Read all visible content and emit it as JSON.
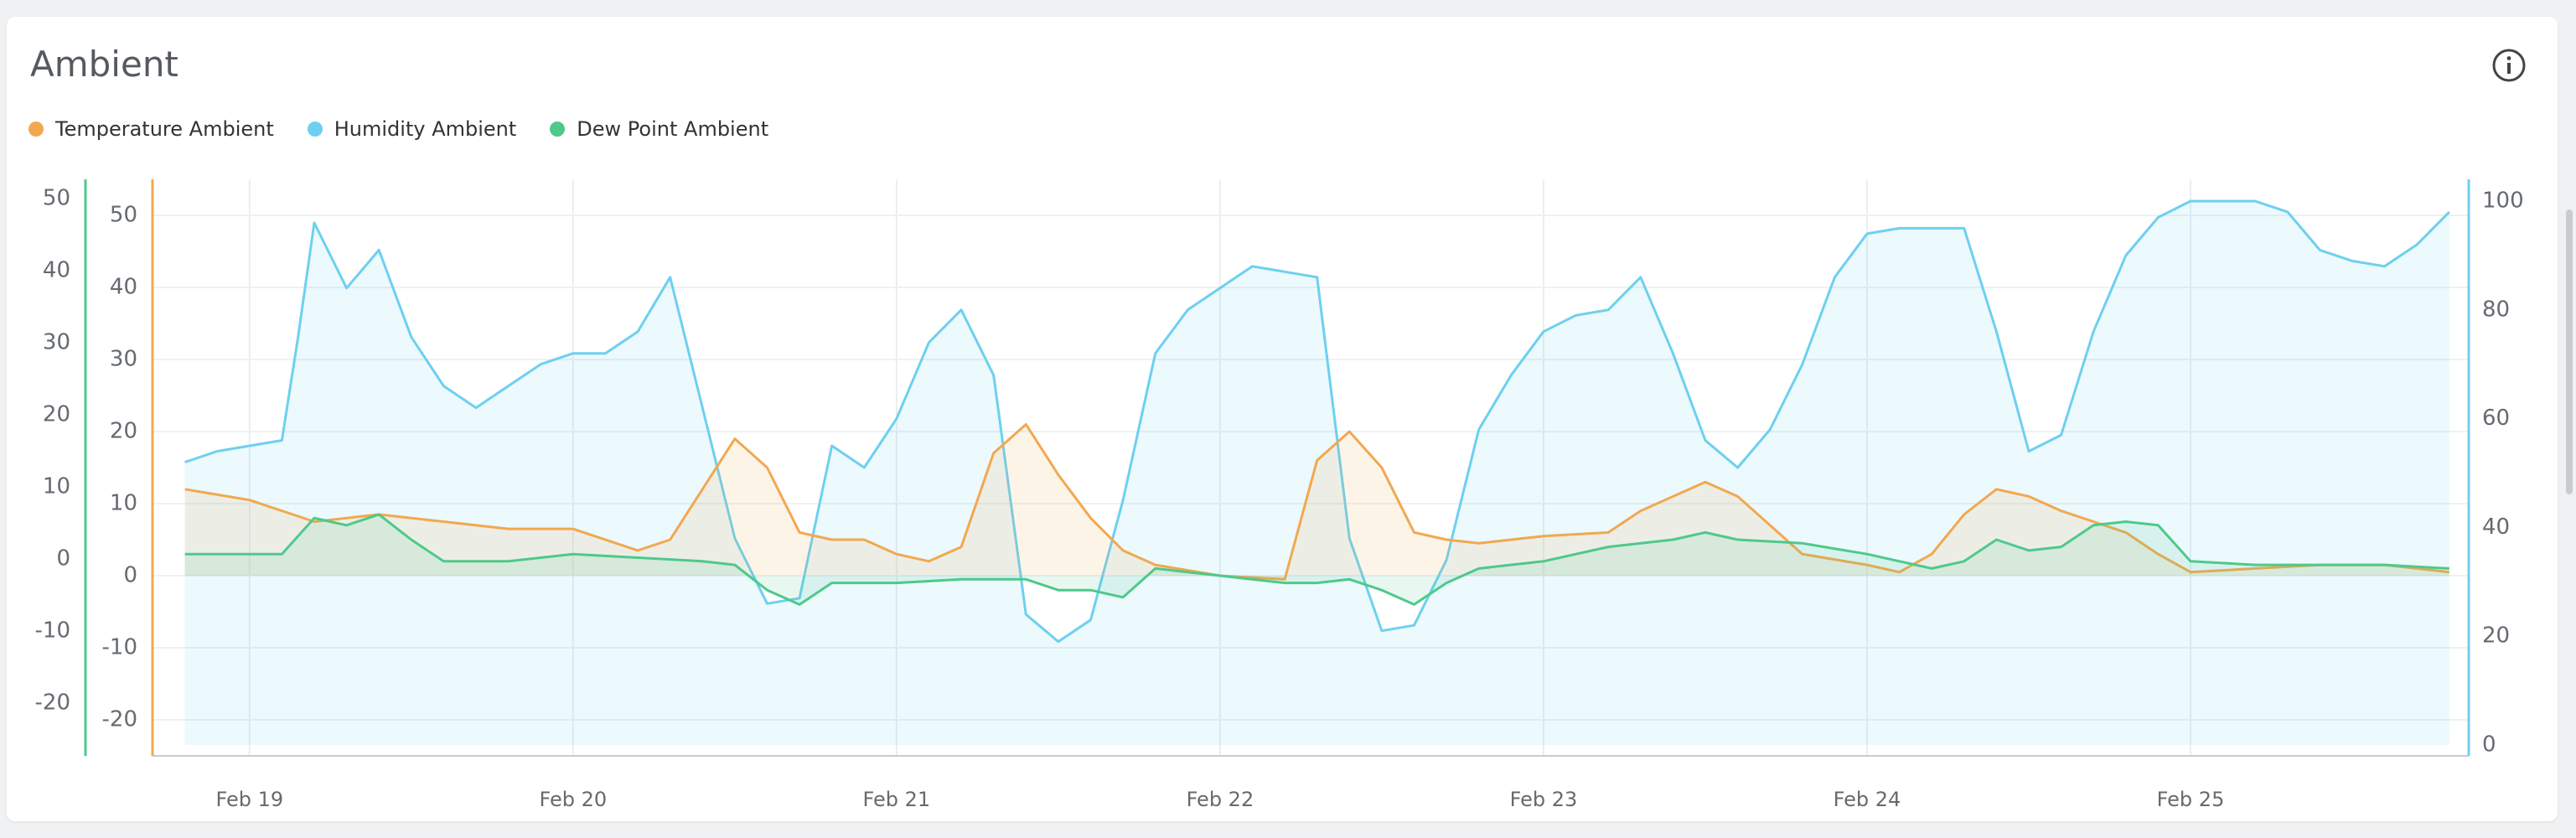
{
  "card": {
    "title": "Ambient"
  },
  "icons": {
    "info": "info-circle-icon"
  },
  "legend": [
    {
      "label": "Temperature Ambient",
      "color": "#f2a84f"
    },
    {
      "label": "Humidity Ambient",
      "color": "#6dd0f0"
    },
    {
      "label": "Dew Point Ambient",
      "color": "#4ec98a"
    }
  ],
  "chart_data": {
    "type": "area",
    "grid": true,
    "legend_position": "top-left",
    "x_ticks": [
      "Feb 19",
      "Feb 20",
      "Feb 21",
      "Feb 22",
      "Feb 23",
      "Feb 24",
      "Feb 25"
    ],
    "x_range": [
      18.7,
      25.86
    ],
    "y_left_outer": {
      "ticks": [
        "50",
        "40",
        "30",
        "20",
        "10",
        "0",
        "-10",
        "-20"
      ],
      "range": [
        -25,
        55
      ],
      "color": "#4ec98a"
    },
    "y_left_inner": {
      "ticks": [
        "50",
        "40",
        "30",
        "20",
        "10",
        "0",
        "-10",
        "-20"
      ],
      "range": [
        -25,
        55
      ],
      "color": "#f2a84f"
    },
    "y_right": {
      "ticks": [
        "100",
        "80",
        "60",
        "40",
        "20",
        "0"
      ],
      "range": [
        -2,
        104
      ],
      "color": "#6dd0f0"
    },
    "series": [
      {
        "name": "Temperature Ambient",
        "color": "#f2a84f",
        "axis": "left",
        "x": [
          18.8,
          19.0,
          19.2,
          19.4,
          19.6,
          19.8,
          20.0,
          20.2,
          20.3,
          20.5,
          20.6,
          20.7,
          20.8,
          20.9,
          21.0,
          21.1,
          21.2,
          21.3,
          21.4,
          21.5,
          21.6,
          21.7,
          21.8,
          22.0,
          22.2,
          22.3,
          22.4,
          22.5,
          22.6,
          22.7,
          22.8,
          23.0,
          23.2,
          23.3,
          23.5,
          23.6,
          23.7,
          23.8,
          24.0,
          24.1,
          24.2,
          24.3,
          24.4,
          24.5,
          24.6,
          24.7,
          24.8,
          24.9,
          25.0,
          25.2,
          25.4,
          25.6,
          25.8
        ],
        "values": [
          12,
          10.5,
          7.5,
          8.5,
          7.5,
          6.5,
          6.5,
          3.5,
          5,
          19,
          15,
          6,
          5,
          5,
          3,
          2,
          4,
          17,
          21,
          14,
          8,
          3.5,
          1.5,
          0,
          -0.5,
          16,
          20,
          15,
          6,
          5,
          4.5,
          5.5,
          6,
          9,
          13,
          11,
          7,
          3,
          1.5,
          0.5,
          3,
          8.5,
          12,
          11,
          9,
          7.5,
          6,
          3,
          0.5,
          1,
          1.5,
          1.5,
          0.5
        ]
      },
      {
        "name": "Humidity Ambient",
        "color": "#6dd0f0",
        "axis": "right",
        "x": [
          18.8,
          18.9,
          19.0,
          19.1,
          19.15,
          19.2,
          19.3,
          19.4,
          19.5,
          19.6,
          19.7,
          19.8,
          19.9,
          20.0,
          20.1,
          20.2,
          20.3,
          20.4,
          20.5,
          20.6,
          20.7,
          20.8,
          20.9,
          21.0,
          21.1,
          21.2,
          21.3,
          21.4,
          21.5,
          21.6,
          21.7,
          21.8,
          21.9,
          22.0,
          22.1,
          22.2,
          22.3,
          22.4,
          22.5,
          22.6,
          22.7,
          22.8,
          22.9,
          23.0,
          23.1,
          23.2,
          23.3,
          23.4,
          23.5,
          23.6,
          23.7,
          23.8,
          23.9,
          24.0,
          24.1,
          24.2,
          24.3,
          24.4,
          24.5,
          24.6,
          24.7,
          24.8,
          24.9,
          25.0,
          25.1,
          25.2,
          25.3,
          25.4,
          25.5,
          25.6,
          25.7,
          25.8
        ],
        "values": [
          52,
          54,
          55,
          56,
          75,
          96,
          84,
          91,
          75,
          66,
          62,
          66,
          70,
          72,
          72,
          76,
          86,
          62,
          38,
          26,
          27,
          55,
          51,
          60,
          74,
          80,
          68,
          24,
          19,
          23,
          45,
          72,
          80,
          84,
          88,
          87,
          86,
          38,
          21,
          22,
          34,
          58,
          68,
          76,
          79,
          80,
          86,
          72,
          56,
          51,
          58,
          70,
          86,
          94,
          95,
          95,
          95,
          76,
          54,
          57,
          76,
          90,
          97,
          100,
          100,
          100,
          98,
          91,
          89,
          88,
          92,
          98
        ]
      },
      {
        "name": "Dew Point Ambient",
        "color": "#4ec98a",
        "axis": "left",
        "x": [
          18.8,
          19.0,
          19.1,
          19.2,
          19.3,
          19.4,
          19.5,
          19.6,
          19.8,
          20.0,
          20.2,
          20.4,
          20.5,
          20.6,
          20.7,
          20.8,
          20.9,
          21.0,
          21.2,
          21.4,
          21.5,
          21.6,
          21.7,
          21.8,
          22.0,
          22.2,
          22.3,
          22.4,
          22.5,
          22.6,
          22.7,
          22.8,
          23.0,
          23.2,
          23.4,
          23.5,
          23.6,
          23.8,
          24.0,
          24.1,
          24.2,
          24.3,
          24.4,
          24.5,
          24.6,
          24.7,
          24.8,
          24.9,
          25.0,
          25.2,
          25.4,
          25.6,
          25.8
        ],
        "values": [
          3,
          3,
          3,
          8,
          7,
          8.5,
          5,
          2,
          2,
          3,
          2.5,
          2,
          1.5,
          -2,
          -4,
          -1,
          -1,
          -1,
          -0.5,
          -0.5,
          -2,
          -2,
          -3,
          1,
          0,
          -1,
          -1,
          -0.5,
          -2,
          -4,
          -1,
          1,
          2,
          4,
          5,
          6,
          5,
          4.5,
          3,
          2,
          1,
          2,
          5,
          3.5,
          4,
          7,
          7.5,
          7,
          2,
          1.5,
          1.5,
          1.5,
          1
        ]
      }
    ]
  }
}
